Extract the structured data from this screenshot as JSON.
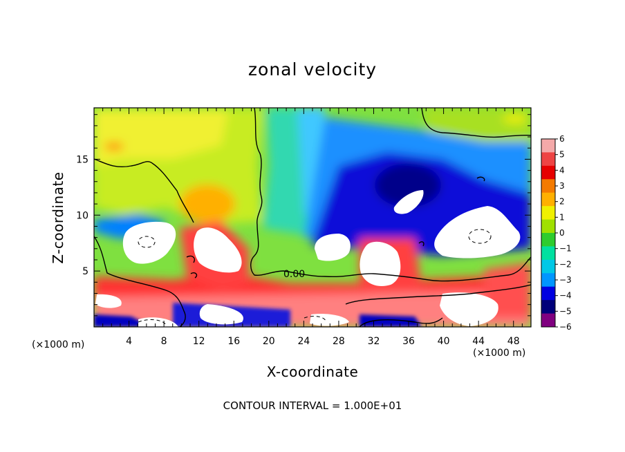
{
  "chart_data": {
    "type": "heatmap",
    "title": "zonal velocity",
    "xlabel": "X-coordinate",
    "ylabel": "Z-coordinate",
    "x_units": "(×1000 m)",
    "x_ticks": [
      4,
      8,
      12,
      16,
      20,
      24,
      28,
      32,
      36,
      40,
      44,
      48
    ],
    "y_ticks": [
      5,
      10,
      15
    ],
    "xlim": [
      0,
      50
    ],
    "ylim": [
      0,
      19.6
    ],
    "colorbar": {
      "levels": [
        6,
        5,
        4,
        3,
        2,
        1,
        0,
        -1,
        -2,
        -3,
        -4,
        -5,
        -6
      ],
      "colors": [
        "#f4a9a9",
        "#ee4444",
        "#e60000",
        "#f47a00",
        "#ffb000",
        "#f0f000",
        "#a0e000",
        "#2ecc2e",
        "#00e0a0",
        "#00c8e6",
        "#0096ff",
        "#0000e0",
        "#00007a",
        "#800080"
      ]
    },
    "contour_label": "0.00",
    "contour_interval_text": "CONTOUR INTERVAL = 1.000E+01"
  }
}
